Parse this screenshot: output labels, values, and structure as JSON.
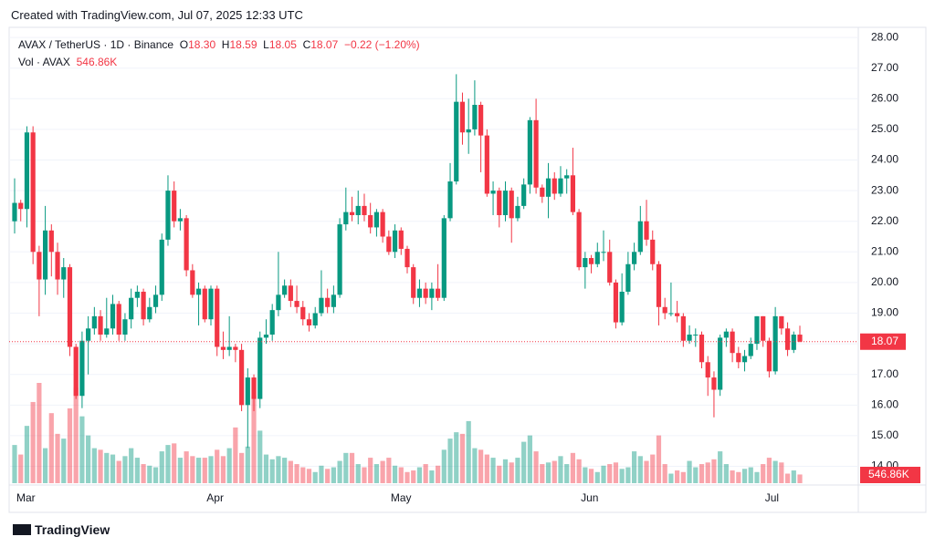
{
  "header": {
    "created": "Created with TradingView.com, Jul 07, 2025 12:33 UTC"
  },
  "legend": {
    "symbol": "AVAX / TetherUS · 1D · Binance",
    "ohlc": [
      {
        "key": "O",
        "value": "18.30"
      },
      {
        "key": "H",
        "value": "18.59"
      },
      {
        "key": "L",
        "value": "18.05"
      },
      {
        "key": "C",
        "value": "18.07"
      }
    ],
    "change": "−0.22 (−1.20%)",
    "volume_name": "Vol · AVAX",
    "volume_value": "546.86K"
  },
  "chart_data": {
    "type": "candlestick",
    "categories": [
      "Mar",
      null,
      null,
      null,
      null,
      null,
      null,
      null,
      null,
      null,
      null,
      null,
      null,
      null,
      null,
      null,
      null,
      null,
      null,
      null,
      null,
      null,
      null,
      null,
      null,
      null,
      null,
      null,
      null,
      null,
      null,
      "Apr",
      null,
      null,
      null,
      null,
      null,
      null,
      null,
      null,
      null,
      null,
      null,
      null,
      null,
      null,
      null,
      null,
      null,
      null,
      null,
      null,
      null,
      null,
      null,
      null,
      null,
      null,
      null,
      null,
      null,
      "May",
      null,
      null,
      null,
      null,
      null,
      null,
      null,
      null,
      null,
      null,
      null,
      null,
      null,
      null,
      null,
      null,
      null,
      null,
      null,
      null,
      null,
      null,
      null,
      null,
      null,
      null,
      null,
      null,
      null,
      null,
      "Jun",
      null,
      null,
      null,
      null,
      null,
      null,
      null,
      null,
      null,
      null,
      null,
      null,
      null,
      null,
      null,
      null,
      null,
      null,
      null,
      null,
      null,
      null,
      null,
      null,
      null,
      null,
      null,
      null,
      null,
      "Jul",
      null,
      null,
      null,
      null,
      null,
      null
    ],
    "open": [
      22.0,
      22.6,
      22.4,
      24.9,
      21.0,
      20.1,
      21.7,
      21.0,
      20.1,
      20.5,
      17.9,
      16.3,
      18.1,
      18.5,
      18.9,
      18.3,
      18.5,
      19.3,
      18.3,
      18.8,
      19.5,
      19.7,
      18.8,
      19.2,
      19.6,
      21.4,
      23.0,
      22.0,
      22.1,
      20.4,
      19.6,
      19.8,
      18.8,
      19.8,
      17.9,
      17.8,
      17.9,
      17.8,
      16.0,
      16.9,
      16.2,
      18.2,
      18.3,
      19.1,
      19.6,
      19.9,
      19.4,
      19.2,
      18.8,
      18.6,
      19.0,
      19.5,
      19.2,
      19.6,
      21.9,
      22.3,
      22.2,
      22.5,
      22.2,
      21.8,
      22.3,
      21.5,
      21.0,
      21.7,
      21.1,
      20.5,
      19.5,
      19.8,
      19.5,
      19.8,
      19.5,
      22.1,
      23.3,
      25.9,
      24.9,
      25.0,
      25.8,
      24.8,
      22.9,
      23.0,
      22.2,
      23.0,
      22.1,
      22.5,
      23.2,
      25.3,
      23.1,
      22.8,
      23.4,
      22.9,
      23.4,
      23.5,
      22.3,
      20.5,
      20.8,
      20.6,
      21.0,
      21.0,
      20.0,
      18.7,
      19.7,
      20.6,
      21.0,
      22.0,
      21.4,
      20.6,
      19.2,
      19.0,
      19.0,
      18.9,
      18.1,
      18.3,
      18.3,
      17.4,
      16.9,
      16.5,
      18.2,
      18.4,
      17.7,
      17.4,
      17.6,
      18.0,
      18.9,
      18.1,
      17.1,
      18.9,
      18.5,
      17.8,
      18.3
    ],
    "high": [
      23.4,
      22.7,
      25.1,
      25.1,
      21.2,
      22.5,
      21.9,
      21.3,
      20.8,
      20.6,
      18.0,
      18.4,
      18.9,
      19.2,
      19.1,
      19.5,
      19.6,
      19.4,
      19.0,
      19.8,
      19.9,
      19.8,
      19.5,
      19.9,
      21.6,
      23.5,
      23.3,
      22.4,
      22.2,
      20.6,
      20.0,
      19.9,
      19.9,
      19.9,
      18.4,
      18.9,
      18.0,
      18.0,
      17.2,
      17.0,
      18.4,
      18.8,
      19.3,
      21.0,
      20.1,
      20.1,
      19.9,
      19.4,
      19.0,
      19.2,
      20.4,
      19.8,
      19.9,
      22.1,
      23.1,
      22.8,
      23.0,
      22.9,
      22.6,
      22.4,
      22.4,
      21.7,
      21.9,
      21.8,
      21.2,
      20.6,
      20.1,
      20.0,
      20.0,
      20.6,
      22.2,
      23.9,
      26.8,
      26.2,
      26.0,
      26.6,
      25.9,
      25.0,
      23.3,
      23.1,
      23.3,
      23.1,
      22.8,
      23.4,
      25.4,
      26.0,
      23.2,
      23.9,
      23.6,
      23.8,
      23.7,
      24.4,
      22.4,
      21.0,
      20.9,
      21.3,
      21.7,
      21.4,
      20.1,
      20.3,
      21.0,
      21.3,
      22.5,
      22.7,
      21.7,
      20.7,
      19.5,
      20.0,
      19.4,
      19.0,
      18.6,
      18.5,
      18.4,
      17.6,
      17.1,
      18.3,
      18.5,
      18.5,
      17.9,
      17.8,
      18.2,
      18.9,
      18.9,
      18.2,
      19.2,
      18.9,
      18.7,
      18.4,
      18.59
    ],
    "low": [
      21.6,
      22.0,
      21.8,
      20.6,
      18.9,
      19.6,
      20.2,
      19.6,
      19.5,
      17.6,
      16.2,
      15.9,
      17.0,
      18.3,
      18.1,
      18.2,
      18.3,
      18.1,
      18.1,
      18.5,
      19.2,
      18.6,
      18.7,
      19.0,
      19.4,
      21.2,
      21.8,
      21.7,
      20.2,
      19.5,
      18.6,
      18.7,
      18.6,
      17.6,
      17.5,
      17.6,
      17.4,
      15.8,
      14.6,
      15.8,
      15.9,
      18.0,
      18.1,
      18.9,
      19.5,
      19.2,
      19.0,
      18.6,
      18.4,
      18.5,
      18.9,
      19.0,
      19.0,
      19.5,
      21.7,
      22.0,
      21.9,
      22.0,
      21.6,
      21.5,
      21.3,
      20.9,
      20.8,
      20.9,
      20.3,
      19.3,
      19.2,
      19.3,
      19.1,
      19.4,
      19.4,
      22.0,
      23.2,
      24.5,
      24.2,
      24.8,
      23.6,
      22.8,
      22.2,
      21.8,
      22.0,
      21.3,
      22.0,
      22.4,
      22.9,
      22.9,
      22.6,
      22.1,
      22.7,
      22.8,
      22.9,
      22.2,
      20.4,
      19.8,
      20.3,
      20.5,
      20.7,
      19.9,
      18.5,
      18.6,
      19.6,
      20.4,
      20.9,
      21.2,
      20.4,
      18.6,
      18.8,
      18.9,
      18.7,
      17.9,
      18.0,
      17.9,
      17.2,
      16.3,
      15.6,
      16.3,
      17.9,
      17.4,
      17.2,
      17.1,
      17.5,
      17.8,
      17.9,
      16.9,
      17.0,
      18.3,
      17.6,
      17.7,
      18.05
    ],
    "close": [
      22.6,
      22.4,
      24.9,
      21.0,
      20.1,
      21.7,
      21.0,
      20.1,
      20.5,
      17.9,
      16.3,
      18.1,
      18.5,
      18.9,
      18.3,
      18.5,
      19.3,
      18.3,
      18.8,
      19.5,
      19.7,
      18.8,
      19.2,
      19.6,
      21.4,
      23.0,
      22.0,
      22.1,
      20.4,
      19.6,
      19.8,
      18.8,
      19.8,
      17.9,
      17.8,
      17.9,
      17.8,
      16.0,
      16.9,
      16.2,
      18.2,
      18.3,
      19.1,
      19.6,
      19.9,
      19.4,
      19.2,
      18.8,
      18.6,
      19.0,
      19.5,
      19.2,
      19.6,
      21.9,
      22.3,
      22.2,
      22.5,
      22.2,
      21.8,
      22.3,
      21.5,
      21.0,
      21.7,
      21.1,
      20.5,
      19.5,
      19.8,
      19.5,
      19.8,
      19.5,
      22.1,
      23.3,
      25.9,
      24.9,
      25.0,
      25.8,
      24.8,
      22.9,
      23.0,
      22.2,
      23.0,
      22.1,
      22.5,
      23.2,
      25.3,
      23.1,
      22.8,
      23.4,
      22.9,
      23.4,
      23.5,
      22.3,
      20.5,
      20.8,
      20.6,
      21.0,
      21.0,
      20.0,
      18.7,
      19.7,
      20.6,
      21.0,
      22.0,
      21.4,
      20.6,
      19.2,
      19.0,
      19.0,
      18.9,
      18.1,
      18.3,
      18.3,
      17.4,
      16.9,
      16.5,
      18.2,
      18.4,
      17.7,
      17.4,
      17.6,
      18.0,
      18.9,
      18.1,
      17.1,
      18.9,
      18.5,
      17.8,
      18.3,
      18.07
    ],
    "volume": [
      2400000,
      1800000,
      3600000,
      5100000,
      6300000,
      2200000,
      4400000,
      3100000,
      2800000,
      4700000,
      6000000,
      4200000,
      3000000,
      2200000,
      2100000,
      1900000,
      1800000,
      1400000,
      1700000,
      2200000,
      1600000,
      1200000,
      1100000,
      1000000,
      2000000,
      2400000,
      2500000,
      1600000,
      2000000,
      1700000,
      1600000,
      1600000,
      1700000,
      2100000,
      1700000,
      2200000,
      3500000,
      1900000,
      2300000,
      5500000,
      3300000,
      1800000,
      1500000,
      1700000,
      1600000,
      1400000,
      1200000,
      1000000,
      900000,
      700000,
      1100000,
      900000,
      1000000,
      1400000,
      1900000,
      1900000,
      1200000,
      1000000,
      1600000,
      1200000,
      1400000,
      1600000,
      1100000,
      1000000,
      700000,
      800000,
      1000000,
      1200000,
      800000,
      1100000,
      2100000,
      2800000,
      3200000,
      3100000,
      3900000,
      2200000,
      2100000,
      1800000,
      1600000,
      1100000,
      1500000,
      1300000,
      1600000,
      2600000,
      3000000,
      2000000,
      1200000,
      1300000,
      1400000,
      1700000,
      1200000,
      1900000,
      1500000,
      1000000,
      900000,
      700000,
      1100000,
      1200000,
      1300000,
      900000,
      1000000,
      2000000,
      1700000,
      1400000,
      1800000,
      3000000,
      1200000,
      600000,
      800000,
      700000,
      1400000,
      1000000,
      1200000,
      1300000,
      1500000,
      2000000,
      1200000,
      800000,
      700000,
      900000,
      1000000,
      700000,
      1200000,
      1600000,
      1400000,
      1300000,
      600000,
      800000,
      546860
    ],
    "up_color": "#089981",
    "down_color": "#f23645",
    "ylim": [
      13.45,
      28.33
    ],
    "yticks": [
      {
        "value": 14,
        "label": "14.00"
      },
      {
        "value": 15,
        "label": "15.00"
      },
      {
        "value": 16,
        "label": "16.00"
      },
      {
        "value": 17,
        "label": "17.00"
      },
      {
        "value": 18,
        "label": "18.00"
      },
      {
        "value": 19,
        "label": "19.00"
      },
      {
        "value": 20,
        "label": "20.00"
      },
      {
        "value": 21,
        "label": "21.00"
      },
      {
        "value": 22,
        "label": "22.00"
      },
      {
        "value": 23,
        "label": "23.00"
      },
      {
        "value": 24,
        "label": "24.00"
      },
      {
        "value": 25,
        "label": "25.00"
      },
      {
        "value": 26,
        "label": "26.00"
      },
      {
        "value": 27,
        "label": "27.00"
      },
      {
        "value": 28,
        "label": "28.00"
      }
    ],
    "grid": true,
    "last_price_label": "18.07",
    "last_volume_label": "546.86K"
  },
  "footer": {
    "brand": "TradingView"
  }
}
